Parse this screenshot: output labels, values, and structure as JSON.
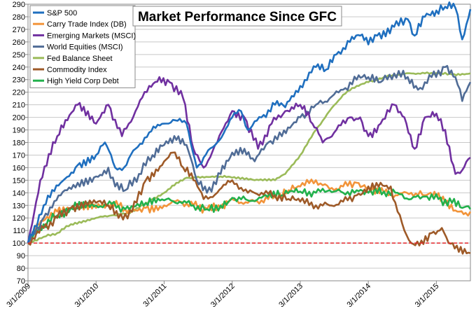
{
  "chart_data": {
    "type": "line",
    "title": "Market Performance Since GFC",
    "xlabel": "",
    "ylabel": "",
    "ylim": [
      70,
      290
    ],
    "yticks": [
      70,
      80,
      90,
      100,
      110,
      120,
      130,
      140,
      150,
      160,
      170,
      180,
      190,
      200,
      210,
      220,
      230,
      240,
      250,
      260,
      270,
      280,
      290
    ],
    "xlim": [
      2009.17,
      2015.67
    ],
    "xticks": [
      {
        "x": 2009.17,
        "label": "3/1/2009"
      },
      {
        "x": 2010.17,
        "label": "3/1/2010"
      },
      {
        "x": 2011.17,
        "label": "3/1/2011"
      },
      {
        "x": 2012.17,
        "label": "3/1/2012"
      },
      {
        "x": 2013.17,
        "label": "3/1/2013"
      },
      {
        "x": 2014.17,
        "label": "3/1/2014"
      },
      {
        "x": 2015.17,
        "label": "3/1/2015"
      }
    ],
    "grid": true,
    "legend_position": "top-left",
    "reference_line": {
      "y": 100,
      "color": "#e3262b",
      "style": "dashed"
    },
    "series": [
      {
        "name": "S&P 500",
        "color": "#1f6fbf",
        "x": [
          2009.17,
          2009.4,
          2009.65,
          2009.9,
          2010.17,
          2010.3,
          2010.45,
          2010.55,
          2010.75,
          2010.95,
          2011.17,
          2011.3,
          2011.5,
          2011.65,
          2011.75,
          2011.95,
          2012.17,
          2012.3,
          2012.4,
          2012.6,
          2012.8,
          2012.95,
          2013.17,
          2013.4,
          2013.55,
          2013.7,
          2013.9,
          2014.05,
          2014.17,
          2014.3,
          2014.55,
          2014.75,
          2014.85,
          2015.0,
          2015.17,
          2015.3,
          2015.45,
          2015.55,
          2015.67
        ],
        "values": [
          100,
          130,
          148,
          162,
          170,
          180,
          160,
          158,
          175,
          188,
          195,
          198,
          195,
          160,
          168,
          180,
          200,
          205,
          190,
          200,
          210,
          208,
          225,
          240,
          238,
          250,
          260,
          265,
          258,
          265,
          272,
          278,
          265,
          280,
          285,
          288,
          287,
          262,
          286
        ]
      },
      {
        "name": "Carry Trade Index (DB)",
        "color": "#f2943a",
        "x": [
          2009.17,
          2009.3,
          2009.6,
          2009.9,
          2010.17,
          2010.4,
          2010.6,
          2010.9,
          2011.17,
          2011.4,
          2011.6,
          2011.8,
          2012.0,
          2012.17,
          2012.4,
          2012.6,
          2012.8,
          2013.0,
          2013.17,
          2013.4,
          2013.6,
          2013.8,
          2014.0,
          2014.17,
          2014.4,
          2014.6,
          2014.8,
          2015.0,
          2015.17,
          2015.3,
          2015.45,
          2015.6,
          2015.67
        ],
        "values": [
          100,
          115,
          125,
          128,
          128,
          132,
          127,
          128,
          130,
          133,
          130,
          127,
          128,
          135,
          132,
          134,
          137,
          142,
          145,
          150,
          143,
          145,
          148,
          145,
          140,
          138,
          140,
          138,
          137,
          132,
          126,
          124,
          125
        ]
      },
      {
        "name": "Emerging Markets (MSCI)",
        "color": "#7030a0",
        "x": [
          2009.17,
          2009.35,
          2009.6,
          2009.9,
          2010.17,
          2010.35,
          2010.55,
          2010.75,
          2010.95,
          2011.1,
          2011.25,
          2011.45,
          2011.6,
          2011.75,
          2011.95,
          2012.17,
          2012.35,
          2012.55,
          2012.75,
          2012.95,
          2013.17,
          2013.35,
          2013.5,
          2013.7,
          2013.9,
          2014.05,
          2014.17,
          2014.35,
          2014.55,
          2014.7,
          2014.85,
          2015.0,
          2015.17,
          2015.3,
          2015.45,
          2015.55,
          2015.67
        ],
        "values": [
          100,
          150,
          185,
          210,
          195,
          210,
          185,
          205,
          225,
          232,
          228,
          215,
          175,
          160,
          180,
          205,
          200,
          175,
          195,
          205,
          210,
          195,
          180,
          190,
          200,
          200,
          185,
          195,
          210,
          200,
          175,
          200,
          203,
          190,
          155,
          158,
          168
        ]
      },
      {
        "name": "World Equities (MSCI)",
        "color": "#506c96",
        "x": [
          2009.17,
          2009.4,
          2009.65,
          2009.9,
          2010.17,
          2010.35,
          2010.45,
          2010.6,
          2010.8,
          2011.0,
          2011.17,
          2011.35,
          2011.5,
          2011.65,
          2011.8,
          2012.0,
          2012.17,
          2012.35,
          2012.5,
          2012.7,
          2012.9,
          2013.17,
          2013.4,
          2013.6,
          2013.8,
          2014.0,
          2014.17,
          2014.35,
          2014.55,
          2014.75,
          2014.9,
          2015.1,
          2015.3,
          2015.45,
          2015.55,
          2015.67
        ],
        "values": [
          100,
          120,
          138,
          148,
          153,
          160,
          145,
          142,
          155,
          170,
          178,
          182,
          178,
          150,
          140,
          155,
          172,
          175,
          165,
          180,
          185,
          200,
          210,
          215,
          222,
          230,
          232,
          228,
          235,
          232,
          222,
          232,
          240,
          232,
          213,
          228
        ]
      },
      {
        "name": "Fed Balance Sheet",
        "color": "#9bbb59",
        "x": [
          2009.17,
          2009.4,
          2009.6,
          2009.8,
          2010.17,
          2010.4,
          2010.6,
          2010.8,
          2011.0,
          2011.17,
          2011.35,
          2011.5,
          2011.7,
          2012.0,
          2012.17,
          2012.5,
          2012.8,
          2012.95,
          2013.17,
          2013.4,
          2013.6,
          2013.8,
          2014.0,
          2014.17,
          2014.4,
          2014.6,
          2014.8,
          2015.0,
          2015.2,
          2015.4,
          2015.67
        ],
        "values": [
          100,
          105,
          108,
          115,
          120,
          122,
          123,
          128,
          135,
          140,
          148,
          152,
          152,
          153,
          152,
          150,
          150,
          155,
          170,
          190,
          205,
          218,
          225,
          228,
          232,
          234,
          235,
          235,
          235,
          234,
          235
        ]
      },
      {
        "name": "Commodity Index",
        "color": "#9e5a28",
        "x": [
          2009.17,
          2009.4,
          2009.6,
          2009.8,
          2010.17,
          2010.35,
          2010.5,
          2010.7,
          2010.9,
          2011.17,
          2011.3,
          2011.45,
          2011.6,
          2011.75,
          2011.95,
          2012.17,
          2012.4,
          2012.6,
          2012.8,
          2013.0,
          2013.17,
          2013.4,
          2013.6,
          2013.8,
          2014.0,
          2014.17,
          2014.35,
          2014.5,
          2014.6,
          2014.7,
          2014.8,
          2014.95,
          2015.1,
          2015.25,
          2015.35,
          2015.5,
          2015.67
        ],
        "values": [
          100,
          112,
          120,
          128,
          132,
          130,
          120,
          125,
          150,
          165,
          172,
          160,
          150,
          135,
          140,
          150,
          140,
          140,
          138,
          135,
          133,
          130,
          130,
          133,
          138,
          145,
          148,
          145,
          125,
          110,
          100,
          102,
          108,
          112,
          100,
          93,
          92
        ]
      },
      {
        "name": "High Yield Corp Debt",
        "color": "#22b14c",
        "x": [
          2009.17,
          2009.4,
          2009.6,
          2009.8,
          2010.17,
          2010.4,
          2010.6,
          2010.9,
          2011.17,
          2011.4,
          2011.6,
          2011.8,
          2012.0,
          2012.17,
          2012.4,
          2012.6,
          2012.9,
          2013.17,
          2013.4,
          2013.6,
          2013.8,
          2014.0,
          2014.17,
          2014.4,
          2014.6,
          2014.8,
          2015.0,
          2015.2,
          2015.4,
          2015.55,
          2015.67
        ],
        "values": [
          100,
          115,
          122,
          128,
          130,
          131,
          127,
          132,
          134,
          133,
          130,
          127,
          130,
          136,
          134,
          136,
          138,
          141,
          140,
          142,
          140,
          142,
          140,
          141,
          140,
          135,
          137,
          135,
          132,
          128,
          127
        ]
      }
    ]
  }
}
